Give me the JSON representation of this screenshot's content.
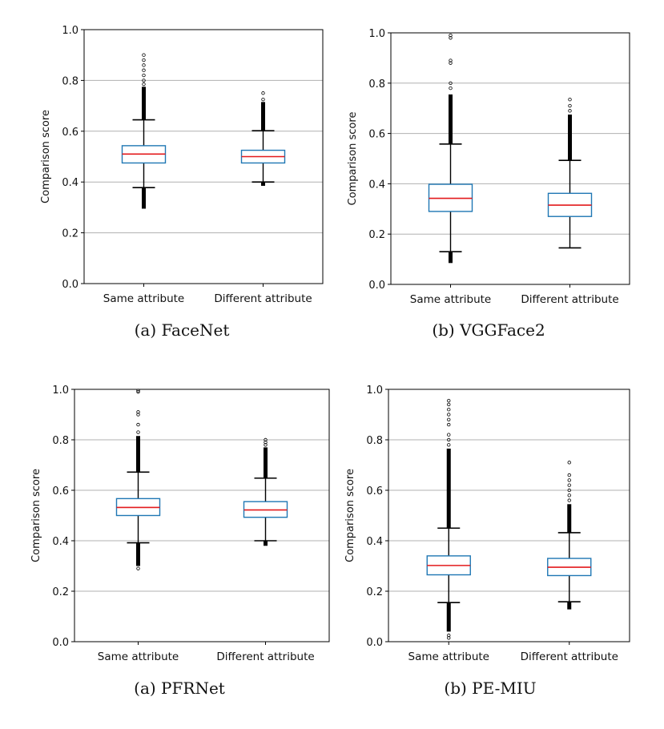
{
  "figure": {
    "panels": [
      {
        "caption": "(a)  FaceNet",
        "chart_data": {
          "type": "box",
          "title": "",
          "xlabel": "",
          "ylabel": "Comparison score",
          "ylim": [
            0.0,
            1.0
          ],
          "yticks": [
            "0.0",
            "0.2",
            "0.4",
            "0.6",
            "0.8",
            "1.0"
          ],
          "grid": true,
          "categories": [
            "Same attribute",
            "Different attribute"
          ],
          "boxes": [
            {
              "category": "Same attribute",
              "whisker_low": 0.378,
              "q1": 0.475,
              "median": 0.51,
              "q3": 0.543,
              "whisker_high": 0.645,
              "outliers_high_dense": [
                0.645,
                0.775
              ],
              "outliers_low_dense": [
                0.295,
                0.378
              ],
              "outliers_sparse": [
                0.785,
                0.8,
                0.82,
                0.84,
                0.86,
                0.88,
                0.9
              ]
            },
            {
              "category": "Different attribute",
              "whisker_low": 0.4,
              "q1": 0.475,
              "median": 0.5,
              "q3": 0.525,
              "whisker_high": 0.602,
              "outliers_high_dense": [
                0.602,
                0.715
              ],
              "outliers_low_dense": [
                0.385,
                0.4
              ],
              "outliers_sparse": [
                0.725,
                0.75
              ]
            }
          ]
        }
      },
      {
        "caption": "(b)  VGGFace2",
        "chart_data": {
          "type": "box",
          "title": "",
          "xlabel": "",
          "ylabel": "Comparison score",
          "ylim": [
            0.0,
            1.0
          ],
          "yticks": [
            "0.0",
            "0.2",
            "0.4",
            "0.6",
            "0.8",
            "1.0"
          ],
          "grid": true,
          "categories": [
            "Same attribute",
            "Different attribute"
          ],
          "boxes": [
            {
              "category": "Same attribute",
              "whisker_low": 0.13,
              "q1": 0.29,
              "median": 0.342,
              "q3": 0.398,
              "whisker_high": 0.558,
              "outliers_high_dense": [
                0.558,
                0.755
              ],
              "outliers_low_dense": [
                0.085,
                0.13
              ],
              "outliers_sparse": [
                0.78,
                0.8,
                0.88,
                0.89,
                0.98,
                0.99
              ]
            },
            {
              "category": "Different attribute",
              "whisker_low": 0.145,
              "q1": 0.27,
              "median": 0.315,
              "q3": 0.362,
              "whisker_high": 0.493,
              "outliers_high_dense": [
                0.493,
                0.675
              ],
              "outliers_low_dense": [],
              "outliers_sparse": [
                0.69,
                0.71,
                0.735
              ]
            }
          ]
        }
      },
      {
        "caption": "(a)  PFRNet",
        "chart_data": {
          "type": "box",
          "title": "",
          "xlabel": "",
          "ylabel": "Comparison score",
          "ylim": [
            0.0,
            1.0
          ],
          "yticks": [
            "0.0",
            "0.2",
            "0.4",
            "0.6",
            "0.8",
            "1.0"
          ],
          "grid": true,
          "categories": [
            "Same attribute",
            "Different attribute"
          ],
          "boxes": [
            {
              "category": "Same attribute",
              "whisker_low": 0.392,
              "q1": 0.5,
              "median": 0.532,
              "q3": 0.567,
              "whisker_high": 0.672,
              "outliers_high_dense": [
                0.672,
                0.815
              ],
              "outliers_low_dense": [
                0.3,
                0.392
              ],
              "outliers_sparse": [
                0.29,
                0.83,
                0.86,
                0.9,
                0.91,
                0.99,
                0.995
              ]
            },
            {
              "category": "Different attribute",
              "whisker_low": 0.4,
              "q1": 0.493,
              "median": 0.522,
              "q3": 0.555,
              "whisker_high": 0.648,
              "outliers_high_dense": [
                0.648,
                0.77
              ],
              "outliers_low_dense": [
                0.38,
                0.4
              ],
              "outliers_sparse": [
                0.78,
                0.79,
                0.8
              ]
            }
          ]
        }
      },
      {
        "caption": "(b)  PE-MIU",
        "chart_data": {
          "type": "box",
          "title": "",
          "xlabel": "",
          "ylabel": "Comparison score",
          "ylim": [
            0.0,
            1.0
          ],
          "yticks": [
            "0.0",
            "0.2",
            "0.4",
            "0.6",
            "0.8",
            "1.0"
          ],
          "grid": true,
          "categories": [
            "Same attribute",
            "Different attribute"
          ],
          "boxes": [
            {
              "category": "Same attribute",
              "whisker_low": 0.155,
              "q1": 0.265,
              "median": 0.302,
              "q3": 0.34,
              "whisker_high": 0.45,
              "outliers_high_dense": [
                0.45,
                0.765
              ],
              "outliers_low_dense": [
                0.04,
                0.155
              ],
              "outliers_sparse": [
                0.015,
                0.025,
                0.78,
                0.8,
                0.82,
                0.86,
                0.88,
                0.9,
                0.92,
                0.94,
                0.955
              ]
            },
            {
              "category": "Different attribute",
              "whisker_low": 0.158,
              "q1": 0.262,
              "median": 0.295,
              "q3": 0.33,
              "whisker_high": 0.432,
              "outliers_high_dense": [
                0.432,
                0.545
              ],
              "outliers_low_dense": [
                0.128,
                0.158
              ],
              "outliers_sparse": [
                0.56,
                0.58,
                0.6,
                0.62,
                0.64,
                0.66,
                0.71
              ]
            }
          ]
        }
      }
    ]
  },
  "colors": {
    "box_edge": "#1f77b4",
    "median": "#e31a1c",
    "whisker": "#000000",
    "grid": "#b0b0b0",
    "frame": "#000000",
    "outlier": "#000000"
  }
}
